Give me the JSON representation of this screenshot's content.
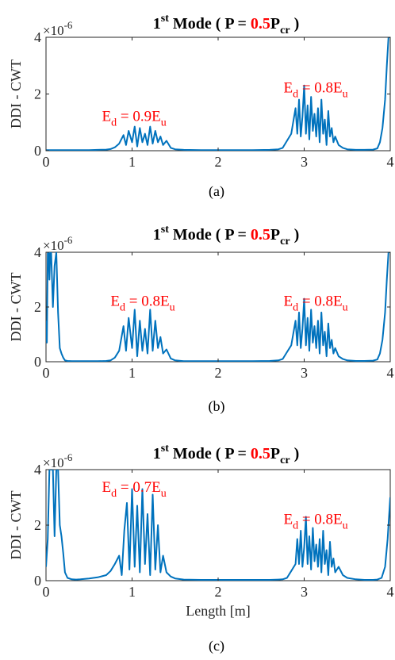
{
  "colors": {
    "line": "#0072BD",
    "annotation": "#FF0000",
    "axis": "#262626",
    "title_highlight": "#FF0000"
  },
  "chart_data": [
    {
      "type": "line",
      "panel_label": "(a)",
      "title": {
        "prefix": "1",
        "sup": "st",
        "mid": " Mode ( P = ",
        "value": "0.5",
        "suffix": "P",
        "sub": "cr",
        "close": " )"
      },
      "ylabel": "DDI - CWT",
      "xlabel": "",
      "exponent": {
        "base": "×10",
        "power": "-6"
      },
      "xlim": [
        0,
        4
      ],
      "ylim": [
        0,
        4
      ],
      "xticks": [
        "0",
        "1",
        "2",
        "3",
        "4"
      ],
      "yticks": [
        "0",
        "2",
        "4"
      ],
      "annotations": [
        {
          "main": "E",
          "sub": "d",
          "rest": " = 0.9E",
          "sub2": "u",
          "x": 0.65,
          "y": 1.05
        },
        {
          "main": "E",
          "sub": "d",
          "rest": " = 0.8E",
          "sub2": "u",
          "x": 2.76,
          "y": 2.05
        }
      ],
      "x": [
        0.0,
        0.1,
        0.2,
        0.3,
        0.4,
        0.5,
        0.6,
        0.7,
        0.75,
        0.8,
        0.85,
        0.9,
        0.93,
        0.96,
        1.0,
        1.03,
        1.06,
        1.09,
        1.12,
        1.15,
        1.18,
        1.21,
        1.24,
        1.27,
        1.3,
        1.33,
        1.36,
        1.4,
        1.45,
        1.5,
        1.6,
        1.8,
        2.0,
        2.2,
        2.4,
        2.6,
        2.7,
        2.75,
        2.8,
        2.85,
        2.9,
        2.92,
        2.94,
        2.96,
        2.98,
        3.0,
        3.02,
        3.04,
        3.06,
        3.08,
        3.1,
        3.12,
        3.14,
        3.16,
        3.18,
        3.2,
        3.22,
        3.24,
        3.26,
        3.28,
        3.3,
        3.32,
        3.34,
        3.36,
        3.4,
        3.45,
        3.5,
        3.6,
        3.7,
        3.8,
        3.85,
        3.88,
        3.91,
        3.94,
        3.96,
        3.98,
        4.0
      ],
      "y": [
        0.02,
        0.02,
        0.02,
        0.02,
        0.02,
        0.02,
        0.03,
        0.04,
        0.06,
        0.12,
        0.25,
        0.55,
        0.2,
        0.7,
        0.3,
        0.85,
        0.15,
        0.8,
        0.3,
        0.6,
        0.2,
        0.85,
        0.25,
        0.7,
        0.3,
        0.5,
        0.2,
        0.35,
        0.1,
        0.05,
        0.03,
        0.02,
        0.02,
        0.02,
        0.02,
        0.03,
        0.05,
        0.1,
        0.35,
        0.6,
        1.5,
        0.6,
        1.8,
        0.5,
        1.2,
        2.3,
        0.6,
        1.6,
        0.4,
        1.9,
        0.7,
        1.3,
        0.5,
        1.5,
        0.3,
        1.8,
        0.6,
        1.1,
        0.2,
        1.4,
        0.5,
        0.8,
        0.3,
        0.5,
        0.2,
        0.1,
        0.05,
        0.03,
        0.03,
        0.04,
        0.08,
        0.3,
        0.8,
        1.8,
        3.0,
        4.0,
        4.0
      ]
    },
    {
      "type": "line",
      "panel_label": "(b)",
      "title": {
        "prefix": "1",
        "sup": "st",
        "mid": " Mode ( P = ",
        "value": "0.5",
        "suffix": "P",
        "sub": "cr",
        "close": " )"
      },
      "ylabel": "DDI - CWT",
      "xlabel": "",
      "exponent": {
        "base": "×10",
        "power": "-6"
      },
      "xlim": [
        0,
        4
      ],
      "ylim": [
        0,
        4
      ],
      "xticks": [
        "0",
        "1",
        "2",
        "3",
        "4"
      ],
      "yticks": [
        "0",
        "2",
        "4"
      ],
      "annotations": [
        {
          "main": "E",
          "sub": "d",
          "rest": " = 0.8E",
          "sub2": "u",
          "x": 0.75,
          "y": 2.05
        },
        {
          "main": "E",
          "sub": "d",
          "rest": " = 0.8E",
          "sub2": "u",
          "x": 2.76,
          "y": 2.05
        }
      ],
      "x": [
        0.0,
        0.01,
        0.02,
        0.03,
        0.04,
        0.05,
        0.06,
        0.08,
        0.1,
        0.12,
        0.14,
        0.16,
        0.18,
        0.2,
        0.22,
        0.25,
        0.3,
        0.4,
        0.5,
        0.6,
        0.7,
        0.75,
        0.8,
        0.85,
        0.9,
        0.93,
        0.96,
        1.0,
        1.03,
        1.06,
        1.09,
        1.12,
        1.15,
        1.18,
        1.21,
        1.24,
        1.27,
        1.3,
        1.33,
        1.36,
        1.4,
        1.45,
        1.5,
        1.6,
        1.8,
        2.0,
        2.2,
        2.4,
        2.6,
        2.7,
        2.75,
        2.8,
        2.85,
        2.9,
        2.92,
        2.94,
        2.96,
        2.98,
        3.0,
        3.02,
        3.04,
        3.06,
        3.08,
        3.1,
        3.12,
        3.14,
        3.16,
        3.18,
        3.2,
        3.22,
        3.24,
        3.26,
        3.28,
        3.3,
        3.32,
        3.34,
        3.36,
        3.4,
        3.45,
        3.5,
        3.6,
        3.7,
        3.8,
        3.85,
        3.88,
        3.91,
        3.94,
        3.96,
        3.98,
        4.0
      ],
      "y": [
        1.5,
        0.7,
        4.0,
        4.0,
        3.0,
        4.0,
        4.0,
        2.0,
        3.5,
        4.0,
        1.8,
        0.5,
        0.3,
        0.15,
        0.05,
        0.03,
        0.02,
        0.02,
        0.02,
        0.02,
        0.03,
        0.05,
        0.15,
        0.4,
        1.3,
        0.4,
        1.6,
        0.5,
        1.9,
        0.2,
        1.5,
        0.4,
        1.2,
        0.3,
        1.9,
        0.4,
        1.5,
        0.5,
        0.9,
        0.3,
        0.45,
        0.12,
        0.05,
        0.02,
        0.02,
        0.02,
        0.02,
        0.02,
        0.03,
        0.05,
        0.1,
        0.35,
        0.6,
        1.5,
        0.6,
        1.8,
        0.5,
        1.2,
        2.3,
        0.6,
        1.6,
        0.4,
        1.9,
        0.7,
        1.3,
        0.5,
        1.5,
        0.3,
        1.8,
        0.6,
        1.1,
        0.2,
        1.4,
        0.5,
        0.8,
        0.3,
        0.5,
        0.2,
        0.1,
        0.05,
        0.03,
        0.03,
        0.04,
        0.08,
        0.3,
        0.8,
        1.8,
        3.0,
        4.0,
        4.0
      ]
    },
    {
      "type": "line",
      "panel_label": "(c)",
      "title": {
        "prefix": "1",
        "sup": "st",
        "mid": " Mode ( P = ",
        "value": "0.5",
        "suffix": "P",
        "sub": "cr",
        "close": " )"
      },
      "ylabel": "DDI - CWT",
      "xlabel": "Length [m]",
      "exponent": {
        "base": "×10",
        "power": "-6"
      },
      "xlim": [
        0,
        4
      ],
      "ylim": [
        0,
        4
      ],
      "xticks": [
        "0",
        "1",
        "2",
        "3",
        "4"
      ],
      "yticks": [
        "0",
        "2",
        "4"
      ],
      "annotations": [
        {
          "main": "E",
          "sub": "d",
          "rest": " = 0.7E",
          "sub2": "u",
          "x": 0.65,
          "y": 3.2
        },
        {
          "main": "E",
          "sub": "d",
          "rest": " = 0.8E",
          "sub2": "u",
          "x": 2.76,
          "y": 2.05
        }
      ],
      "x": [
        0.0,
        0.02,
        0.04,
        0.06,
        0.08,
        0.1,
        0.12,
        0.14,
        0.16,
        0.18,
        0.2,
        0.22,
        0.25,
        0.3,
        0.35,
        0.4,
        0.5,
        0.6,
        0.7,
        0.75,
        0.8,
        0.85,
        0.88,
        0.91,
        0.94,
        0.97,
        1.0,
        1.03,
        1.06,
        1.09,
        1.12,
        1.15,
        1.18,
        1.21,
        1.24,
        1.27,
        1.3,
        1.33,
        1.36,
        1.4,
        1.45,
        1.5,
        1.6,
        1.8,
        2.0,
        2.2,
        2.4,
        2.6,
        2.7,
        2.75,
        2.8,
        2.85,
        2.9,
        2.92,
        2.94,
        2.96,
        2.98,
        3.0,
        3.02,
        3.04,
        3.06,
        3.08,
        3.1,
        3.12,
        3.14,
        3.16,
        3.18,
        3.2,
        3.22,
        3.24,
        3.26,
        3.28,
        3.3,
        3.32,
        3.34,
        3.36,
        3.4,
        3.45,
        3.5,
        3.6,
        3.7,
        3.8,
        3.85,
        3.9,
        3.94,
        3.97,
        4.0
      ],
      "y": [
        0.5,
        1.5,
        4.0,
        4.0,
        4.0,
        1.6,
        4.0,
        4.0,
        2.0,
        1.6,
        1.0,
        0.3,
        0.1,
        0.05,
        0.04,
        0.05,
        0.08,
        0.12,
        0.2,
        0.35,
        0.6,
        0.9,
        0.2,
        1.8,
        2.8,
        0.4,
        3.3,
        0.5,
        2.7,
        0.3,
        3.3,
        0.6,
        2.4,
        0.2,
        3.1,
        0.4,
        2.0,
        0.3,
        0.9,
        0.3,
        0.15,
        0.08,
        0.04,
        0.03,
        0.03,
        0.03,
        0.03,
        0.03,
        0.04,
        0.05,
        0.1,
        0.35,
        0.6,
        1.5,
        0.6,
        1.8,
        0.5,
        1.2,
        2.3,
        0.6,
        1.6,
        0.4,
        1.9,
        0.7,
        1.3,
        0.5,
        1.5,
        0.3,
        1.8,
        0.6,
        1.1,
        0.2,
        1.4,
        0.5,
        0.8,
        0.3,
        0.5,
        0.2,
        0.1,
        0.05,
        0.03,
        0.03,
        0.04,
        0.1,
        0.5,
        1.5,
        3.0
      ]
    }
  ]
}
